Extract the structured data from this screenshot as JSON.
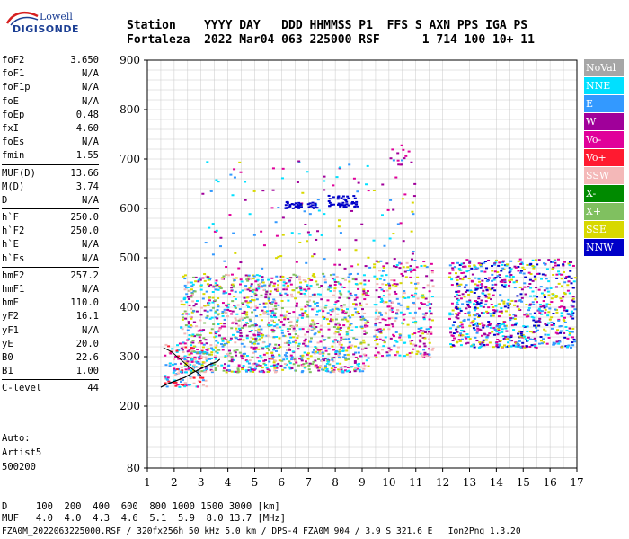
{
  "logo": {
    "line1": "Lowell",
    "line2": "DIGISONDE"
  },
  "header": {
    "line1": "Station    YYYY DAY   DDD HHMMSS P1  FFS S AXN PPS IGA PS",
    "line2": "Fortaleza  2022 Mar04 063 225000 RSF      1 714 100 10+ 11"
  },
  "params_groups": [
    [
      {
        "name": "foF2",
        "value": "3.650"
      },
      {
        "name": "foF1",
        "value": "N/A"
      },
      {
        "name": "foF1p",
        "value": "N/A"
      },
      {
        "name": "foE",
        "value": "N/A"
      },
      {
        "name": "foEp",
        "value": "0.48"
      },
      {
        "name": "fxI",
        "value": "4.60"
      },
      {
        "name": "foEs",
        "value": "N/A"
      },
      {
        "name": "fmin",
        "value": "1.55"
      }
    ],
    [
      {
        "name": "MUF(D)",
        "value": "13.66"
      },
      {
        "name": "M(D)",
        "value": "3.74"
      },
      {
        "name": "D",
        "value": "N/A"
      }
    ],
    [
      {
        "name": "h`F",
        "value": "250.0"
      },
      {
        "name": "h`F2",
        "value": "250.0"
      },
      {
        "name": "h`E",
        "value": "N/A"
      },
      {
        "name": "h`Es",
        "value": "N/A"
      }
    ],
    [
      {
        "name": "hmF2",
        "value": "257.2"
      },
      {
        "name": "hmF1",
        "value": "N/A"
      },
      {
        "name": "hmE",
        "value": "110.0"
      },
      {
        "name": "yF2",
        "value": "16.1"
      },
      {
        "name": "yF1",
        "value": "N/A"
      },
      {
        "name": "yE",
        "value": "20.0"
      },
      {
        "name": "B0",
        "value": "22.6"
      },
      {
        "name": "B1",
        "value": "1.00"
      }
    ],
    [
      {
        "name": "C-level",
        "value": "44"
      }
    ]
  ],
  "autoscaling": {
    "line1": "Auto:",
    "line2": "Artist5",
    "line3": "500200"
  },
  "legend": [
    {
      "label": "NoVal",
      "color": "#a6a6a6"
    },
    {
      "label": "NNE",
      "color": "#00e0ff"
    },
    {
      "label": "E",
      "color": "#3399ff"
    },
    {
      "label": "W",
      "color": "#a0009a"
    },
    {
      "label": "Vo-",
      "color": "#e0009a"
    },
    {
      "label": "Vo+",
      "color": "#ff1a30"
    },
    {
      "label": "SSW",
      "color": "#f4b8b8"
    },
    {
      "label": "X-",
      "color": "#008a00"
    },
    {
      "label": "X+",
      "color": "#80c060"
    },
    {
      "label": "SSE",
      "color": "#d8d800"
    },
    {
      "label": "NNW",
      "color": "#0000c8"
    }
  ],
  "muf_table": {
    "line1": "D     100  200  400  600  800 1000 1500 3000 [km]",
    "line2": "MUF   4.0  4.0  4.3  4.6  5.1  5.9  8.0 13.7 [MHz]"
  },
  "footer": "FZA0M_2022063225000.RSF / 320fx256h 50 kHz 5.0 km / DPS-4 FZA0M 904 / 3.9 S 321.6 E   Ion2Png 1.3.20",
  "chart_data": {
    "type": "scatter",
    "title": "",
    "xlabel": "",
    "ylabel": "",
    "xlim": [
      1,
      17
    ],
    "ylim": [
      80,
      900
    ],
    "x_ticks": [
      "1",
      "2",
      "3",
      "4",
      "5",
      "6",
      "7",
      "8",
      "9",
      "10",
      "11",
      "12",
      "13",
      "14",
      "15",
      "16",
      "17"
    ],
    "y_ticks": [
      "900",
      "800",
      "700",
      "600",
      "500",
      "400",
      "300",
      "200",
      "80"
    ],
    "y_tick_values": [
      900,
      800,
      700,
      600,
      500,
      400,
      300,
      200,
      80
    ],
    "grid": true,
    "echo_clusters": [
      {
        "name": "low-F trace",
        "x": [
          1.6,
          3.2
        ],
        "y": [
          240,
          330
        ],
        "n": 160,
        "colors": [
          "Vo+",
          "Vo-",
          "SSW",
          "NNE",
          "E"
        ]
      },
      {
        "name": "F region A",
        "x": [
          2.2,
          5.7
        ],
        "y": [
          270,
          470
        ],
        "n": 700,
        "colors": [
          "E",
          "NNE",
          "SSW",
          "W",
          "Vo-",
          "SSE",
          "X+"
        ]
      },
      {
        "name": "F region B",
        "x": [
          5.6,
          9.2
        ],
        "y": [
          270,
          470
        ],
        "n": 650,
        "colors": [
          "SSE",
          "E",
          "NNE",
          "SSW",
          "W",
          "Vo-",
          "X+"
        ]
      },
      {
        "name": "F region C",
        "x": [
          9.4,
          11.6
        ],
        "y": [
          300,
          500
        ],
        "n": 300,
        "colors": [
          "W",
          "NNE",
          "E",
          "SSE",
          "Vo-",
          "SSW"
        ]
      },
      {
        "name": "spread F",
        "x": [
          12.2,
          16.9
        ],
        "y": [
          320,
          500
        ],
        "n": 800,
        "colors": [
          "W",
          "E",
          "NNE",
          "Vo-",
          "SSE",
          "NNW"
        ]
      },
      {
        "name": "sparse high",
        "x": [
          3,
          11
        ],
        "y": [
          480,
          700
        ],
        "n": 140,
        "colors": [
          "SSE",
          "NNE",
          "W",
          "E",
          "Vo-"
        ]
      },
      {
        "name": "NNW layer 6",
        "x": [
          6.1,
          7.3
        ],
        "y": [
          602,
          615
        ],
        "n": 40,
        "colors": [
          "NNW"
        ]
      },
      {
        "name": "NNW layer 8",
        "x": [
          7.7,
          8.8
        ],
        "y": [
          605,
          628
        ],
        "n": 45,
        "colors": [
          "NNW"
        ]
      },
      {
        "name": "sporadic 10",
        "x": [
          10.0,
          10.7
        ],
        "y": [
          690,
          730
        ],
        "n": 12,
        "colors": [
          "Vo-",
          "W"
        ]
      }
    ],
    "trace_curve": {
      "x": [
        1.5,
        1.8,
        2.1,
        2.4,
        2.7,
        3.0,
        3.3,
        3.6,
        3.7
      ],
      "y": [
        238,
        246,
        252,
        258,
        268,
        276,
        284,
        290,
        295
      ]
    },
    "trace_curve_x": {
      "x": [
        1.6,
        1.9,
        2.2,
        2.5,
        2.8,
        3.0
      ],
      "y": [
        318,
        310,
        296,
        282,
        270,
        262
      ]
    }
  }
}
